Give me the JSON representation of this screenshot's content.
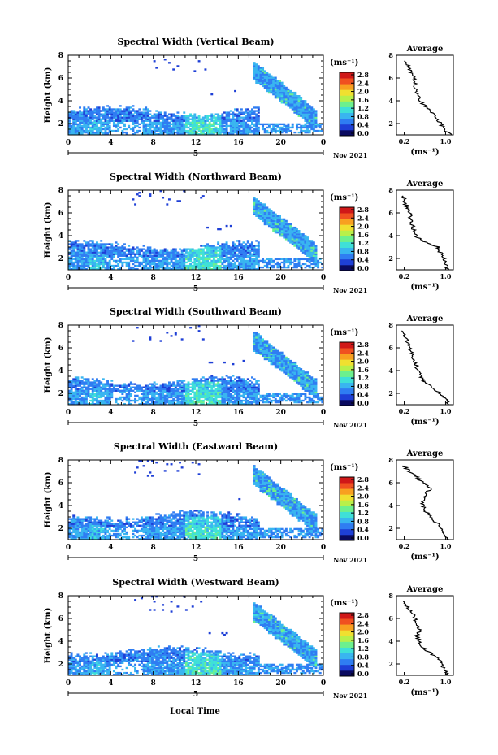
{
  "xlabel_bottom": "Local Time",
  "colorbar": {
    "unit_label": "(ms⁻¹)",
    "ticks": [
      "2.8",
      "2.4",
      "2.0",
      "1.6",
      "1.2",
      "0.8",
      "0.4",
      "0.0"
    ],
    "colors": [
      "#0a0a60",
      "#1e3fd6",
      "#2f7df2",
      "#39b5f0",
      "#3fe0d8",
      "#6cf08e",
      "#b8f04a",
      "#f0e030",
      "#f8a020",
      "#f05020",
      "#d01818"
    ]
  },
  "chart_data": [
    {
      "type": "heatmap",
      "title": "Spectral Width (Vertical Beam)",
      "ylabel": "Height (km)",
      "xlim": [
        0,
        24
      ],
      "ylim": [
        1,
        8
      ],
      "xticks": [
        "0",
        "4",
        "8",
        "12",
        "16",
        "20",
        "0"
      ],
      "yticks": [
        "2",
        "4",
        "6",
        "8"
      ],
      "date_label": "Nov 2021",
      "day_marker": "5",
      "average": {
        "title": "Average",
        "xlabel": "(ms⁻¹)",
        "xticks": [
          "0.2",
          "1.0"
        ],
        "heights": [
          1,
          1.5,
          2,
          2.5,
          3,
          3.5,
          4,
          4.5,
          5,
          5.5,
          6,
          6.5,
          7,
          7.5
        ],
        "values": [
          1.1,
          0.95,
          0.92,
          0.8,
          0.72,
          0.6,
          0.5,
          0.45,
          0.42,
          0.4,
          0.38,
          0.32,
          0.28,
          0.2
        ]
      }
    },
    {
      "type": "heatmap",
      "title": "Spectral Width (Northward Beam)",
      "ylabel": "Height (km)",
      "xlim": [
        0,
        24
      ],
      "ylim": [
        1,
        8
      ],
      "xticks": [
        "0",
        "4",
        "8",
        "12",
        "16",
        "20",
        "0"
      ],
      "yticks": [
        "2",
        "4",
        "6",
        "8"
      ],
      "date_label": "Nov 2021",
      "day_marker": "5",
      "average": {
        "title": "Average",
        "xlabel": "(ms⁻¹)",
        "xticks": [
          "0.2",
          "1.0"
        ],
        "heights": [
          1,
          1.5,
          2,
          2.5,
          3,
          3.5,
          4,
          4.5,
          5,
          5.5,
          6,
          6.5,
          7,
          7.5
        ],
        "values": [
          1.05,
          1.0,
          0.98,
          0.9,
          0.85,
          0.55,
          0.42,
          0.38,
          0.35,
          0.32,
          0.3,
          0.25,
          0.2,
          0.18
        ]
      }
    },
    {
      "type": "heatmap",
      "title": "Spectral Width (Southward Beam)",
      "ylabel": "Height (km)",
      "xlim": [
        0,
        24
      ],
      "ylim": [
        1,
        8
      ],
      "xticks": [
        "0",
        "4",
        "8",
        "12",
        "16",
        "20",
        "0"
      ],
      "yticks": [
        "2",
        "4",
        "6",
        "8"
      ],
      "date_label": "Nov 2021",
      "day_marker": "5",
      "average": {
        "title": "Average",
        "xlabel": "(ms⁻¹)",
        "xticks": [
          "0.2",
          "1.0"
        ],
        "heights": [
          1,
          1.5,
          2,
          2.5,
          3,
          3.5,
          4,
          4.5,
          5,
          5.5,
          6,
          6.5,
          7,
          7.5
        ],
        "values": [
          1.05,
          1.0,
          0.9,
          0.75,
          0.6,
          0.52,
          0.48,
          0.42,
          0.38,
          0.35,
          0.3,
          0.26,
          0.22,
          0.15
        ]
      }
    },
    {
      "type": "heatmap",
      "title": "Spectral Width (Eastward Beam)",
      "ylabel": "Height (km)",
      "xlim": [
        0,
        24
      ],
      "ylim": [
        1,
        8
      ],
      "xticks": [
        "0",
        "4",
        "8",
        "12",
        "16",
        "20",
        "0"
      ],
      "yticks": [
        "2",
        "4",
        "6",
        "8"
      ],
      "date_label": "Nov 2021",
      "day_marker": "5",
      "average": {
        "title": "Average",
        "xlabel": "(ms⁻¹)",
        "xticks": [
          "0.2",
          "1.0"
        ],
        "heights": [
          1,
          1.5,
          2,
          2.5,
          3,
          3.5,
          4,
          4.5,
          5,
          5.5,
          6,
          6.5,
          7,
          7.5
        ],
        "values": [
          1.05,
          1.0,
          0.92,
          0.82,
          0.72,
          0.62,
          0.55,
          0.58,
          0.62,
          0.7,
          0.55,
          0.45,
          0.3,
          0.18
        ]
      }
    },
    {
      "type": "heatmap",
      "title": "Spectral Width (Westward Beam)",
      "ylabel": "Height (km)",
      "xlim": [
        0,
        24
      ],
      "ylim": [
        1,
        8
      ],
      "xticks": [
        "0",
        "4",
        "8",
        "12",
        "16",
        "20",
        "0"
      ],
      "yticks": [
        "2",
        "4",
        "6",
        "8"
      ],
      "date_label": "Nov 2021",
      "day_marker": "5",
      "average": {
        "title": "Average",
        "xlabel": "(ms⁻¹)",
        "xticks": [
          "0.2",
          "1.0"
        ],
        "heights": [
          1,
          1.5,
          2,
          2.5,
          3,
          3.5,
          4,
          4.5,
          5,
          5.5,
          6,
          6.5,
          7,
          7.5
        ],
        "values": [
          1.05,
          0.98,
          0.92,
          0.85,
          0.7,
          0.55,
          0.48,
          0.45,
          0.5,
          0.45,
          0.4,
          0.35,
          0.25,
          0.18
        ]
      }
    }
  ]
}
